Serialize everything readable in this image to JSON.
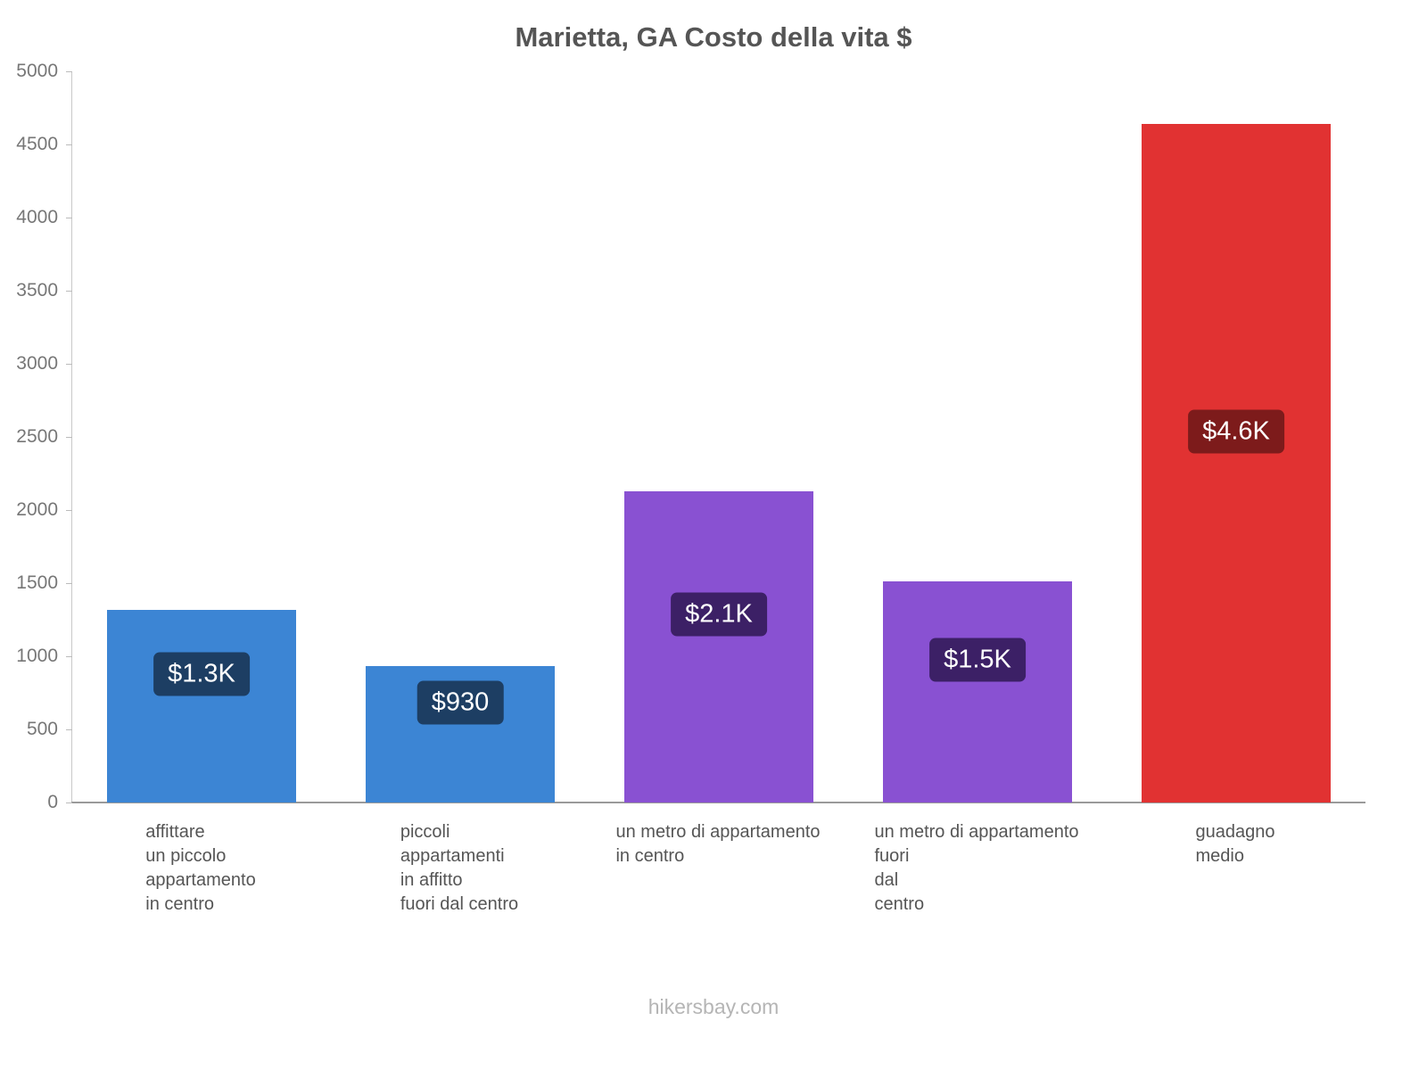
{
  "footer": {
    "text": "hikersbay.com"
  },
  "chart_data": {
    "type": "bar",
    "title": "Marietta, GA Costo della vita $",
    "categories": [
      "affittare\nun piccolo\nappartamento\nin centro",
      "piccoli\nappartamenti\nin affitto\nfuori dal centro",
      "un metro di appartamento\nin centro",
      "un metro di appartamento\nfuori\ndal\ncentro",
      "guadagno\nmedio"
    ],
    "values": [
      1320,
      930,
      2130,
      1510,
      4640
    ],
    "value_labels": [
      "$1.3K",
      "$930",
      "$2.1K",
      "$1.5K",
      "$4.6K"
    ],
    "bar_colors": [
      "#3c85d4",
      "#3c85d4",
      "#8951d2",
      "#8951d2",
      "#e13232"
    ],
    "label_bg_colors": [
      "#1d3e63",
      "#1d3e63",
      "#3c2066",
      "#3c2066",
      "#7d1b1b"
    ],
    "xlabel": "",
    "ylabel": "",
    "ylim": [
      0,
      5000
    ],
    "yticks": [
      0,
      500,
      1000,
      1500,
      2000,
      2500,
      3000,
      3500,
      4000,
      4500,
      5000
    ],
    "grid": false,
    "legend": false,
    "axis_color": "#9a9a9a",
    "text_color": "#555555"
  }
}
